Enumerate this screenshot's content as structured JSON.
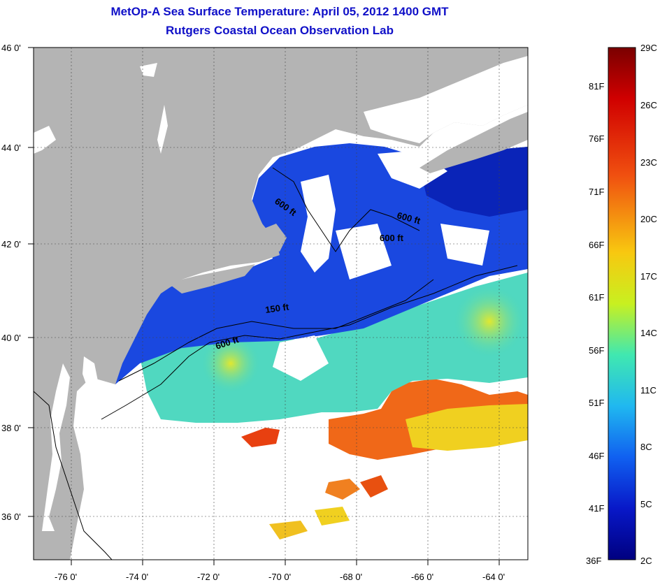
{
  "title": {
    "line1": "MetOp-A Sea Surface Temperature:  April 05, 2012 1400 GMT",
    "line2": "Rutgers Coastal Ocean Observation Lab"
  },
  "map": {
    "lat_labels": [
      "46 0'",
      "44 0'",
      "42 0'",
      "40 0'",
      "38 0'",
      "36 0'"
    ],
    "lon_labels": [
      "-76 0'",
      "-74 0'",
      "-72 0'",
      "-70 0'",
      "-68 0'",
      "-66 0'",
      "-64 0'"
    ],
    "contour_labels": [
      "600 ft",
      "600 ft",
      "600 ft",
      "150 ft",
      "600 ft"
    ],
    "colors": {
      "land": "#b4b4b4",
      "no_data": "#ffffff",
      "cold": "#0a28c8",
      "warm": "#f05a14"
    }
  },
  "colorbar": {
    "celsius": [
      "29C",
      "26C",
      "23C",
      "20C",
      "17C",
      "14C",
      "11C",
      "8C",
      "5C",
      "2C"
    ],
    "fahrenheit": [
      "81F",
      "76F",
      "71F",
      "66F",
      "61F",
      "56F",
      "51F",
      "46F",
      "41F",
      "36F"
    ],
    "range_c": [
      2,
      29
    ]
  }
}
